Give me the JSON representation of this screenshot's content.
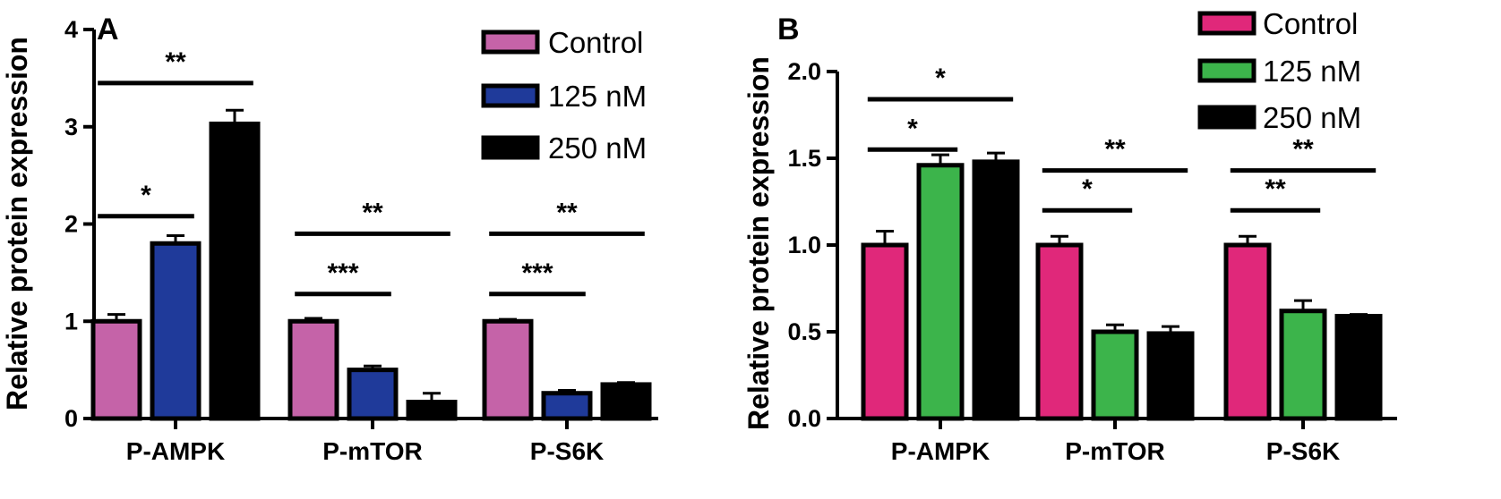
{
  "chart_data": [
    {
      "panel": "A",
      "type": "bar",
      "categories": [
        "P-AMPK",
        "P-mTOR",
        "P-S6K"
      ],
      "series": [
        {
          "name": "Control",
          "color": "#c563a8",
          "values": [
            1.0,
            1.0,
            1.0
          ],
          "errors": [
            0.07,
            0.03,
            0.02
          ]
        },
        {
          "name": "125 nM",
          "color": "#1f3a9a",
          "values": [
            1.8,
            0.5,
            0.26
          ],
          "errors": [
            0.08,
            0.04,
            0.03
          ]
        },
        {
          "name": "250 nM",
          "color": "#000000",
          "values": [
            3.03,
            0.17,
            0.35
          ],
          "errors": [
            0.14,
            0.09,
            0.02
          ]
        }
      ],
      "ylabel": "Relative protein expression",
      "ylim": [
        0,
        4
      ],
      "yticks": [
        "0",
        "1",
        "2",
        "3",
        "4"
      ],
      "legend": "top-right",
      "significance": [
        {
          "category": 0,
          "from": 0,
          "to": 1,
          "y": 2.08,
          "label": "*"
        },
        {
          "category": 0,
          "from": 0,
          "to": 2,
          "y": 3.45,
          "label": "**"
        },
        {
          "category": 1,
          "from": 0,
          "to": 1,
          "y": 1.28,
          "label": "***"
        },
        {
          "category": 1,
          "from": 0,
          "to": 2,
          "y": 1.9,
          "label": "**"
        },
        {
          "category": 2,
          "from": 0,
          "to": 1,
          "y": 1.28,
          "label": "***"
        },
        {
          "category": 2,
          "from": 0,
          "to": 2,
          "y": 1.9,
          "label": "**"
        }
      ]
    },
    {
      "panel": "B",
      "type": "bar",
      "categories": [
        "P-AMPK",
        "P-mTOR",
        "P-S6K"
      ],
      "series": [
        {
          "name": "Control",
          "color": "#e0287a",
          "values": [
            1.0,
            1.0,
            1.0
          ],
          "errors": [
            0.08,
            0.05,
            0.05
          ]
        },
        {
          "name": "125 nM",
          "color": "#3cb44b",
          "values": [
            1.46,
            0.5,
            0.62
          ],
          "errors": [
            0.06,
            0.04,
            0.06
          ]
        },
        {
          "name": "250 nM",
          "color": "#000000",
          "values": [
            1.48,
            0.49,
            0.59
          ],
          "errors": [
            0.05,
            0.04,
            0.01
          ]
        }
      ],
      "ylabel": "Relative protein expression",
      "ylim": [
        0,
        2.0
      ],
      "yticks": [
        "0.0",
        "0.5",
        "1.0",
        "1.5",
        "2.0"
      ],
      "legend": "top-right",
      "significance": [
        {
          "category": 0,
          "from": 0,
          "to": 1,
          "y": 1.55,
          "label": "*"
        },
        {
          "category": 0,
          "from": 0,
          "to": 2,
          "y": 1.84,
          "label": "*"
        },
        {
          "category": 1,
          "from": 0,
          "to": 1,
          "y": 1.2,
          "label": "*"
        },
        {
          "category": 1,
          "from": 0,
          "to": 2,
          "y": 1.43,
          "label": "**"
        },
        {
          "category": 2,
          "from": 0,
          "to": 1,
          "y": 1.2,
          "label": "**"
        },
        {
          "category": 2,
          "from": 0,
          "to": 2,
          "y": 1.43,
          "label": "**"
        }
      ]
    }
  ]
}
